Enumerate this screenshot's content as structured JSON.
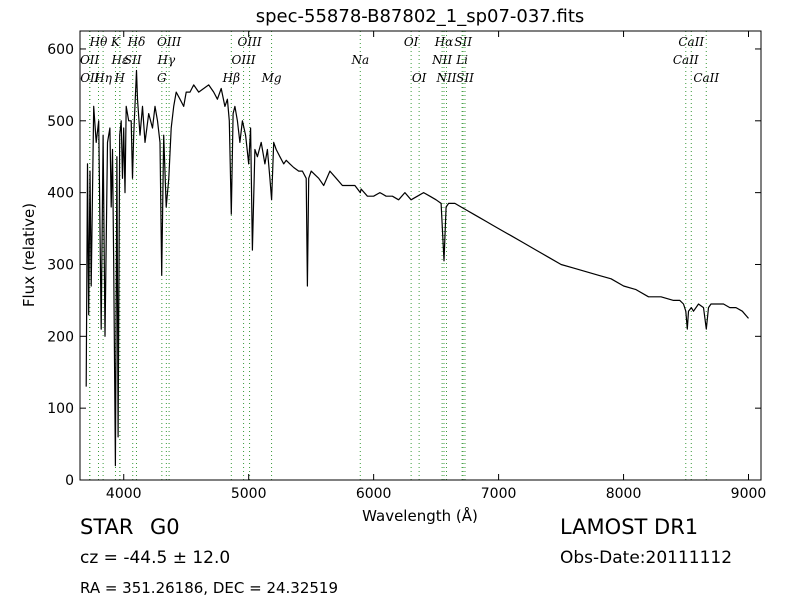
{
  "chart_data": {
    "type": "line",
    "title": "spec-55878-B87802_1_sp07-037.fits",
    "xlabel": "Wavelength (Å)",
    "ylabel": "Flux (relative)",
    "xlim": [
      3650,
      9100
    ],
    "ylim": [
      0,
      625
    ],
    "xticks": [
      4000,
      5000,
      6000,
      7000,
      8000,
      9000
    ],
    "yticks": [
      0,
      100,
      200,
      300,
      400,
      500,
      600
    ],
    "grid": false,
    "line_color": "#000000",
    "marker_color": "#3a9a3a",
    "series": [
      {
        "x": [
          3700,
          3710,
          3720,
          3730,
          3740,
          3760,
          3780,
          3800,
          3820,
          3835,
          3850,
          3870,
          3889,
          3900,
          3910,
          3920,
          3933,
          3945,
          3955,
          3968,
          3980,
          3990,
          4000,
          4010,
          4020,
          4040,
          4060,
          4070,
          4080,
          4102,
          4110,
          4130,
          4150,
          4170,
          4200,
          4230,
          4250,
          4270,
          4290,
          4304,
          4320,
          4340,
          4361,
          4380,
          4400,
          4420,
          4450,
          4480,
          4500,
          4530,
          4560,
          4600,
          4640,
          4680,
          4720,
          4750,
          4780,
          4810,
          4830,
          4845,
          4861,
          4875,
          4890,
          4910,
          4930,
          4950,
          4975,
          5000,
          5015,
          5030,
          5050,
          5070,
          5100,
          5130,
          5150,
          5170,
          5183,
          5200,
          5220,
          5250,
          5280,
          5300,
          5330,
          5360,
          5400,
          5430,
          5460,
          5470,
          5480,
          5500,
          5530,
          5560,
          5600,
          5650,
          5700,
          5750,
          5800,
          5850,
          5893,
          5900,
          5950,
          6000,
          6050,
          6100,
          6150,
          6200,
          6250,
          6300,
          6350,
          6400,
          6450,
          6500,
          6540,
          6563,
          6580,
          6600,
          6650,
          6700,
          6750,
          6800,
          6850,
          6900,
          6950,
          7000,
          7100,
          7200,
          7300,
          7400,
          7500,
          7600,
          7700,
          7800,
          7900,
          8000,
          8100,
          8200,
          8300,
          8400,
          8450,
          8480,
          8498,
          8510,
          8520,
          8542,
          8560,
          8600,
          8640,
          8662,
          8680,
          8700,
          8750,
          8800,
          8850,
          8900,
          8950,
          9000
        ],
        "y": [
          130,
          440,
          230,
          430,
          270,
          520,
          470,
          500,
          210,
          480,
          200,
          470,
          490,
          380,
          460,
          300,
          20,
          450,
          60,
          480,
          500,
          420,
          490,
          400,
          520,
          500,
          500,
          420,
          480,
          570,
          530,
          480,
          520,
          470,
          510,
          490,
          520,
          500,
          470,
          285,
          480,
          380,
          420,
          490,
          520,
          540,
          530,
          520,
          540,
          540,
          550,
          540,
          545,
          550,
          540,
          530,
          545,
          520,
          530,
          500,
          370,
          510,
          520,
          500,
          470,
          500,
          480,
          440,
          490,
          320,
          460,
          450,
          470,
          440,
          460,
          420,
          390,
          470,
          460,
          450,
          440,
          445,
          440,
          435,
          430,
          430,
          420,
          270,
          420,
          430,
          425,
          420,
          410,
          430,
          420,
          410,
          410,
          410,
          400,
          405,
          395,
          395,
          400,
          395,
          395,
          390,
          400,
          390,
          395,
          400,
          395,
          390,
          385,
          305,
          380,
          385,
          385,
          380,
          375,
          370,
          365,
          360,
          355,
          350,
          340,
          330,
          320,
          310,
          300,
          295,
          290,
          285,
          280,
          270,
          265,
          255,
          255,
          250,
          250,
          245,
          235,
          210,
          235,
          240,
          235,
          245,
          240,
          210,
          240,
          245,
          245,
          245,
          240,
          240,
          235,
          225
        ]
      }
    ],
    "line_markers": [
      {
        "label": "Hθ",
        "x": 3798,
        "row": 1
      },
      {
        "label": "OII",
        "x": 3727,
        "row": 2
      },
      {
        "label": "OII",
        "x": 3729,
        "row": 3
      },
      {
        "label": "Hη",
        "x": 3835,
        "row": 3
      },
      {
        "label": "K",
        "x": 3934,
        "row": 1
      },
      {
        "label": "Hε",
        "x": 3970,
        "row": 2
      },
      {
        "label": "SII",
        "x": 4072,
        "row": 2
      },
      {
        "label": "H",
        "x": 3968,
        "row": 3
      },
      {
        "label": "Hδ",
        "x": 4102,
        "row": 1
      },
      {
        "label": "OIII",
        "x": 4363,
        "row": 1
      },
      {
        "label": "Hγ",
        "x": 4341,
        "row": 2
      },
      {
        "label": "G",
        "x": 4305,
        "row": 3
      },
      {
        "label": "OIII",
        "x": 5007,
        "row": 1
      },
      {
        "label": "OIII",
        "x": 4959,
        "row": 2
      },
      {
        "label": "Hβ",
        "x": 4861,
        "row": 3
      },
      {
        "label": "Mg",
        "x": 5183,
        "row": 3
      },
      {
        "label": "Na",
        "x": 5893,
        "row": 2
      },
      {
        "label": "OI",
        "x": 6300,
        "row": 1
      },
      {
        "label": "OI",
        "x": 6364,
        "row": 3
      },
      {
        "label": "Hα",
        "x": 6563,
        "row": 1
      },
      {
        "label": "SII",
        "x": 6716,
        "row": 1
      },
      {
        "label": "NII",
        "x": 6548,
        "row": 2
      },
      {
        "label": "Li",
        "x": 6708,
        "row": 2
      },
      {
        "label": "NII",
        "x": 6583,
        "row": 3
      },
      {
        "label": "SII",
        "x": 6731,
        "row": 3
      },
      {
        "label": "CaII",
        "x": 8542,
        "row": 1
      },
      {
        "label": "CaII",
        "x": 8498,
        "row": 2
      },
      {
        "label": "CaII",
        "x": 8662,
        "row": 3
      }
    ]
  },
  "info": {
    "class_label": "STAR",
    "subclass": "G0",
    "survey": "LAMOST DR1",
    "redshift": "cz = -44.5 ± 12.0",
    "obs_date": "Obs-Date:20111112",
    "coords": "RA = 351.26186, DEC = 24.32519"
  }
}
